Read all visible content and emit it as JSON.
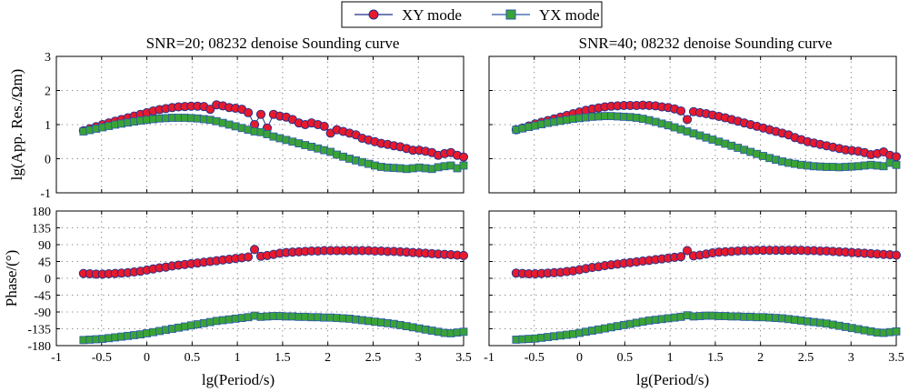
{
  "legend": {
    "entries": [
      {
        "label": "XY mode",
        "color": "#e8192c",
        "edge": "#1f2f8a",
        "marker": "circle"
      },
      {
        "label": "YX mode",
        "color": "#3aa335",
        "edge": "#2a58a8",
        "marker": "square"
      }
    ],
    "placement": "top-center"
  },
  "chart_data": [
    {
      "type": "scatter",
      "title": "SNR=20; 08232 denoise Sounding curve",
      "ylabel": "lg(App. Res./Ωm)",
      "xlabel": "",
      "xlim": [
        -1,
        3.5
      ],
      "ylim": [
        -1,
        3
      ],
      "xticks": [
        "-1",
        "-0.5",
        "0",
        "0.5",
        "1",
        "1.5",
        "2",
        "2.5",
        "3",
        "3.5"
      ],
      "yticks": [
        "-1",
        "0",
        "1",
        "2",
        "3"
      ],
      "grid": true,
      "x": [
        -0.7,
        -0.63,
        -0.56,
        -0.49,
        -0.42,
        -0.35,
        -0.28,
        -0.21,
        -0.14,
        -0.07,
        0,
        0.07,
        0.14,
        0.21,
        0.28,
        0.35,
        0.42,
        0.49,
        0.56,
        0.63,
        0.7,
        0.77,
        0.84,
        0.91,
        0.98,
        1.05,
        1.12,
        1.19,
        1.26,
        1.33,
        1.4,
        1.47,
        1.54,
        1.61,
        1.68,
        1.75,
        1.82,
        1.89,
        1.96,
        2.03,
        2.1,
        2.17,
        2.24,
        2.31,
        2.38,
        2.45,
        2.52,
        2.59,
        2.66,
        2.73,
        2.8,
        2.87,
        2.94,
        3.01,
        3.08,
        3.15,
        3.22,
        3.29,
        3.36,
        3.43,
        3.5
      ],
      "series": [
        {
          "name": "XY mode",
          "values": [
            0.82,
            0.88,
            0.94,
            1.0,
            1.05,
            1.1,
            1.15,
            1.2,
            1.25,
            1.3,
            1.35,
            1.4,
            1.44,
            1.47,
            1.5,
            1.52,
            1.53,
            1.54,
            1.54,
            1.53,
            1.45,
            1.58,
            1.55,
            1.5,
            1.48,
            1.45,
            1.35,
            1.0,
            1.3,
            0.9,
            1.3,
            1.25,
            1.22,
            1.15,
            1.05,
            1.0,
            1.05,
            1.0,
            0.95,
            0.75,
            0.85,
            0.8,
            0.75,
            0.7,
            0.6,
            0.55,
            0.5,
            0.45,
            0.42,
            0.38,
            0.35,
            0.3,
            0.25,
            0.25,
            0.22,
            0.18,
            0.1,
            0.15,
            0.18,
            0.1,
            0.05
          ]
        },
        {
          "name": "YX mode",
          "values": [
            0.8,
            0.84,
            0.88,
            0.92,
            0.96,
            1.0,
            1.03,
            1.06,
            1.09,
            1.12,
            1.14,
            1.16,
            1.18,
            1.19,
            1.2,
            1.2,
            1.2,
            1.19,
            1.18,
            1.16,
            1.14,
            1.1,
            1.05,
            1.0,
            0.95,
            0.9,
            0.85,
            0.8,
            0.78,
            0.72,
            0.65,
            0.6,
            0.55,
            0.5,
            0.45,
            0.4,
            0.35,
            0.3,
            0.25,
            0.2,
            0.12,
            0.06,
            0.0,
            -0.05,
            -0.1,
            -0.15,
            -0.2,
            -0.24,
            -0.26,
            -0.27,
            -0.28,
            -0.3,
            -0.28,
            -0.26,
            -0.28,
            -0.3,
            -0.25,
            -0.22,
            -0.2,
            -0.28,
            -0.2
          ]
        }
      ]
    },
    {
      "type": "scatter",
      "title": "SNR=40; 08232 denoise Sounding curve",
      "ylabel": "",
      "xlabel": "",
      "xlim": [
        -1,
        3.5
      ],
      "ylim": [
        -1,
        3
      ],
      "xticks": [
        "-1",
        "-0.5",
        "0",
        "0.5",
        "1",
        "1.5",
        "2",
        "2.5",
        "3",
        "3.5"
      ],
      "yticks": [],
      "grid": true,
      "x": [
        -0.7,
        -0.63,
        -0.56,
        -0.49,
        -0.42,
        -0.35,
        -0.28,
        -0.21,
        -0.14,
        -0.07,
        0,
        0.07,
        0.14,
        0.21,
        0.28,
        0.35,
        0.42,
        0.49,
        0.56,
        0.63,
        0.7,
        0.77,
        0.84,
        0.91,
        0.98,
        1.05,
        1.12,
        1.19,
        1.26,
        1.33,
        1.4,
        1.47,
        1.54,
        1.61,
        1.68,
        1.75,
        1.82,
        1.89,
        1.96,
        2.03,
        2.1,
        2.17,
        2.24,
        2.31,
        2.38,
        2.45,
        2.52,
        2.59,
        2.66,
        2.73,
        2.8,
        2.87,
        2.94,
        3.01,
        3.08,
        3.15,
        3.22,
        3.29,
        3.36,
        3.43,
        3.5
      ],
      "series": [
        {
          "name": "XY mode",
          "values": [
            0.85,
            0.9,
            0.96,
            1.02,
            1.07,
            1.12,
            1.17,
            1.22,
            1.27,
            1.32,
            1.37,
            1.42,
            1.46,
            1.49,
            1.52,
            1.54,
            1.55,
            1.56,
            1.56,
            1.56,
            1.57,
            1.56,
            1.55,
            1.52,
            1.5,
            1.46,
            1.4,
            1.15,
            1.38,
            1.35,
            1.32,
            1.28,
            1.24,
            1.2,
            1.15,
            1.1,
            1.05,
            1.0,
            0.95,
            0.9,
            0.85,
            0.8,
            0.75,
            0.7,
            0.62,
            0.56,
            0.5,
            0.46,
            0.42,
            0.38,
            0.34,
            0.3,
            0.26,
            0.24,
            0.22,
            0.18,
            0.12,
            0.15,
            0.2,
            0.1,
            0.06
          ]
        },
        {
          "name": "YX mode",
          "values": [
            0.85,
            0.89,
            0.93,
            0.97,
            1.01,
            1.05,
            1.08,
            1.11,
            1.14,
            1.17,
            1.19,
            1.21,
            1.23,
            1.24,
            1.25,
            1.25,
            1.24,
            1.23,
            1.22,
            1.2,
            1.17,
            1.13,
            1.08,
            1.03,
            0.98,
            0.92,
            0.86,
            0.8,
            0.74,
            0.68,
            0.62,
            0.56,
            0.5,
            0.44,
            0.38,
            0.32,
            0.26,
            0.2,
            0.14,
            0.08,
            0.02,
            -0.03,
            -0.08,
            -0.12,
            -0.15,
            -0.18,
            -0.2,
            -0.22,
            -0.23,
            -0.24,
            -0.24,
            -0.25,
            -0.24,
            -0.23,
            -0.22,
            -0.2,
            -0.18,
            -0.2,
            -0.22,
            -0.12,
            -0.18
          ]
        }
      ]
    },
    {
      "type": "scatter",
      "title": "",
      "ylabel": "Phase/(°)",
      "xlabel": "lg(Period/s)",
      "xlim": [
        -1,
        3.5
      ],
      "ylim": [
        -180,
        180
      ],
      "xticks": [
        "-1",
        "-0.5",
        "0",
        "0.5",
        "1",
        "1.5",
        "2",
        "2.5",
        "3",
        "3.5"
      ],
      "yticks": [
        "-180",
        "-135",
        "-90",
        "-45",
        "0",
        "45",
        "90",
        "135",
        "180"
      ],
      "grid": true,
      "x": [
        -0.7,
        -0.63,
        -0.56,
        -0.49,
        -0.42,
        -0.35,
        -0.28,
        -0.21,
        -0.14,
        -0.07,
        0,
        0.07,
        0.14,
        0.21,
        0.28,
        0.35,
        0.42,
        0.49,
        0.56,
        0.63,
        0.7,
        0.77,
        0.84,
        0.91,
        0.98,
        1.05,
        1.12,
        1.19,
        1.26,
        1.33,
        1.4,
        1.47,
        1.54,
        1.61,
        1.68,
        1.75,
        1.82,
        1.89,
        1.96,
        2.03,
        2.1,
        2.17,
        2.24,
        2.31,
        2.38,
        2.45,
        2.52,
        2.59,
        2.66,
        2.73,
        2.8,
        2.87,
        2.94,
        3.01,
        3.08,
        3.15,
        3.22,
        3.29,
        3.36,
        3.43,
        3.5
      ],
      "series": [
        {
          "name": "XY mode",
          "values": [
            13,
            12,
            11,
            11,
            12,
            13,
            14,
            15,
            17,
            19,
            22,
            25,
            28,
            30,
            33,
            35,
            37,
            39,
            41,
            43,
            45,
            47,
            49,
            51,
            53,
            55,
            57,
            77,
            59,
            61,
            64,
            67,
            69,
            70,
            71,
            72,
            73,
            73,
            74,
            74,
            74,
            74,
            74,
            74,
            74,
            74,
            73,
            73,
            72,
            72,
            71,
            70,
            69,
            68,
            67,
            66,
            65,
            64,
            63,
            62,
            61
          ]
        },
        {
          "name": "YX mode",
          "values": [
            -165,
            -164,
            -163,
            -162,
            -160,
            -158,
            -156,
            -154,
            -152,
            -150,
            -147,
            -144,
            -141,
            -138,
            -135,
            -132,
            -129,
            -126,
            -123,
            -120,
            -117,
            -114,
            -112,
            -110,
            -108,
            -106,
            -104,
            -100,
            -103,
            -102,
            -101,
            -101,
            -102,
            -102,
            -103,
            -103,
            -104,
            -104,
            -105,
            -105,
            -106,
            -107,
            -108,
            -110,
            -112,
            -114,
            -116,
            -118,
            -120,
            -122,
            -125,
            -128,
            -131,
            -134,
            -137,
            -140,
            -143,
            -146,
            -147,
            -145,
            -143
          ]
        }
      ]
    },
    {
      "type": "scatter",
      "title": "",
      "ylabel": "",
      "xlabel": "lg(Period/s)",
      "xlim": [
        -1,
        3.5
      ],
      "ylim": [
        -180,
        180
      ],
      "xticks": [
        "-1",
        "-0.5",
        "0",
        "0.5",
        "1",
        "1.5",
        "2",
        "2.5",
        "3",
        "3.5"
      ],
      "yticks": [],
      "grid": true,
      "x": [
        -0.7,
        -0.63,
        -0.56,
        -0.49,
        -0.42,
        -0.35,
        -0.28,
        -0.21,
        -0.14,
        -0.07,
        0,
        0.07,
        0.14,
        0.21,
        0.28,
        0.35,
        0.42,
        0.49,
        0.56,
        0.63,
        0.7,
        0.77,
        0.84,
        0.91,
        0.98,
        1.05,
        1.12,
        1.19,
        1.26,
        1.33,
        1.4,
        1.47,
        1.54,
        1.61,
        1.68,
        1.75,
        1.82,
        1.89,
        1.96,
        2.03,
        2.1,
        2.17,
        2.24,
        2.31,
        2.38,
        2.45,
        2.52,
        2.59,
        2.66,
        2.73,
        2.8,
        2.87,
        2.94,
        3.01,
        3.08,
        3.15,
        3.22,
        3.29,
        3.36,
        3.43,
        3.5
      ],
      "series": [
        {
          "name": "XY mode",
          "values": [
            14,
            13,
            12,
            12,
            13,
            14,
            15,
            16,
            18,
            20,
            23,
            26,
            29,
            31,
            34,
            36,
            38,
            40,
            42,
            44,
            46,
            48,
            50,
            52,
            54,
            56,
            58,
            74,
            60,
            62,
            65,
            68,
            70,
            71,
            72,
            73,
            74,
            74,
            75,
            75,
            75,
            75,
            75,
            75,
            75,
            75,
            74,
            74,
            73,
            73,
            72,
            71,
            70,
            69,
            68,
            67,
            66,
            65,
            64,
            63,
            62
          ]
        },
        {
          "name": "YX mode",
          "values": [
            -164,
            -163,
            -162,
            -161,
            -159,
            -157,
            -155,
            -153,
            -151,
            -149,
            -146,
            -143,
            -140,
            -137,
            -134,
            -131,
            -128,
            -125,
            -122,
            -119,
            -116,
            -113,
            -111,
            -109,
            -107,
            -105,
            -103,
            -99,
            -102,
            -101,
            -100,
            -100,
            -101,
            -101,
            -102,
            -102,
            -103,
            -103,
            -104,
            -104,
            -105,
            -106,
            -107,
            -109,
            -111,
            -113,
            -115,
            -117,
            -119,
            -121,
            -124,
            -127,
            -130,
            -133,
            -136,
            -139,
            -142,
            -145,
            -146,
            -144,
            -142
          ]
        }
      ]
    }
  ]
}
